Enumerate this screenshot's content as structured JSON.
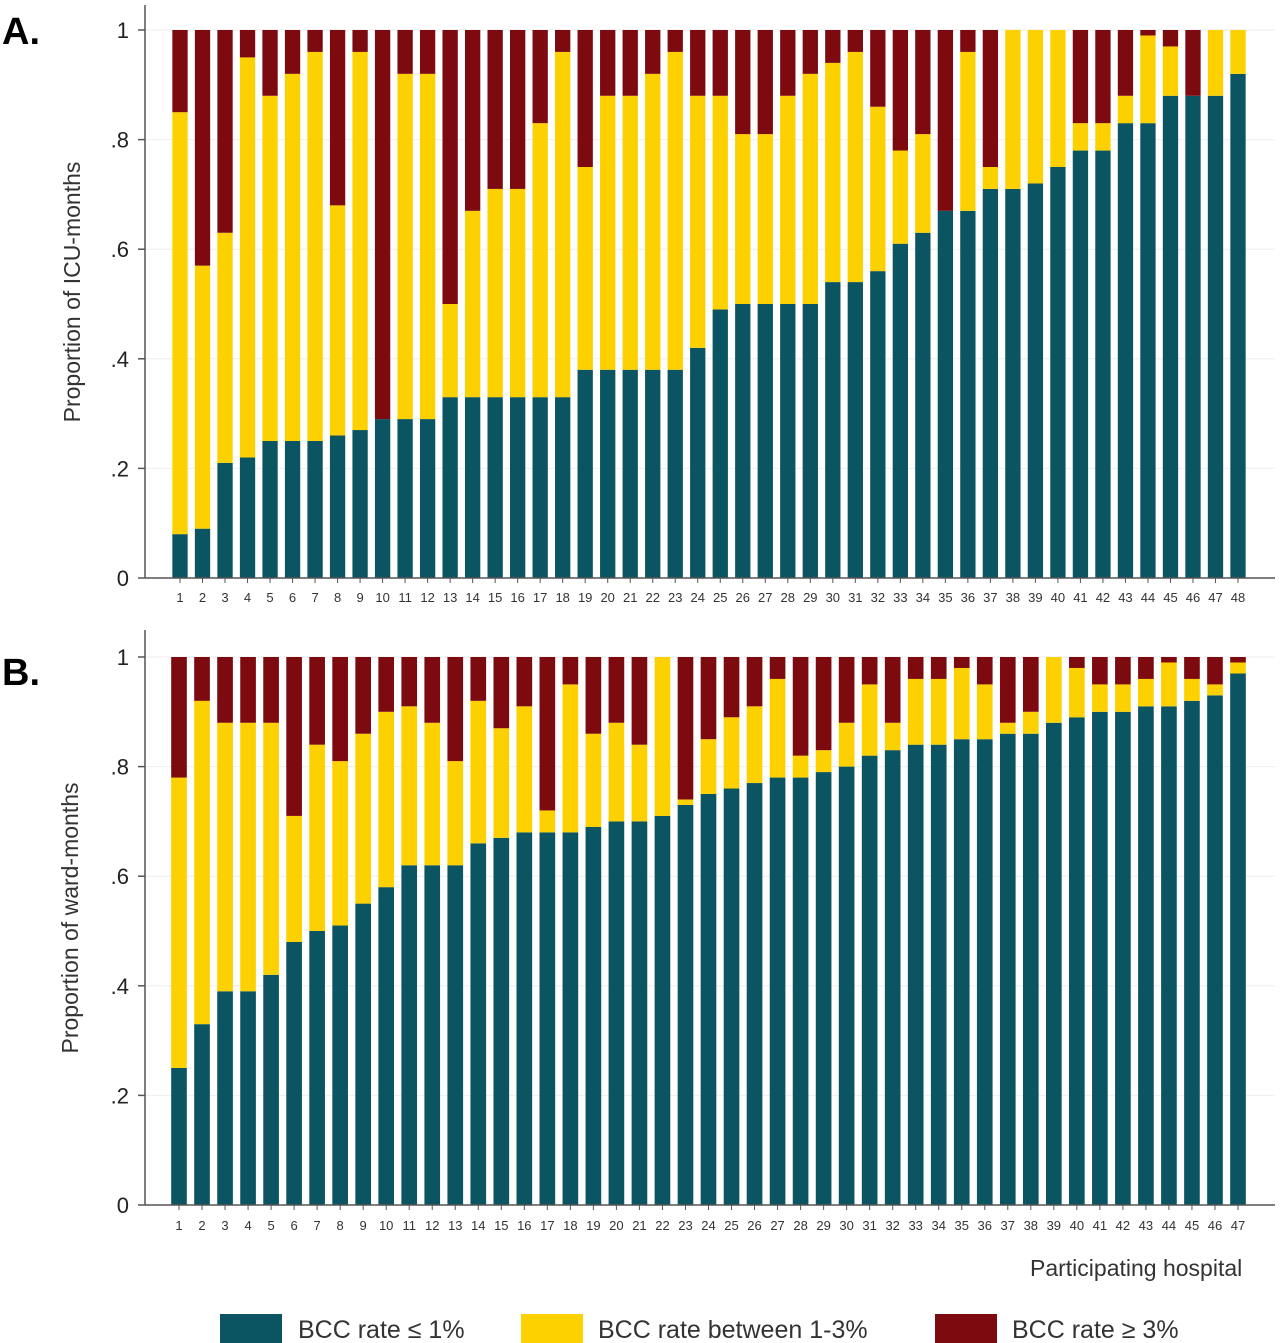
{
  "colors": {
    "low": "#0b5563",
    "mid": "#fdd000",
    "high": "#7d0a0f"
  },
  "legend": [
    "BCC rate ≤ 1%",
    "BCC rate between 1-3%",
    "BCC rate ≥ 3%"
  ],
  "xlabel": "Participating hospital",
  "chart_data": [
    {
      "type": "bar",
      "stacked": true,
      "panel_label": "A.",
      "ylabel": "Proportion of ICU-months",
      "ylim": [
        0,
        1
      ],
      "yticks": [
        "0",
        ".2",
        ".4",
        ".6",
        ".8",
        "1"
      ],
      "grid": true,
      "categories": [
        1,
        2,
        3,
        4,
        5,
        6,
        7,
        8,
        9,
        10,
        11,
        12,
        13,
        14,
        15,
        16,
        17,
        18,
        19,
        20,
        21,
        22,
        23,
        24,
        25,
        26,
        27,
        28,
        29,
        30,
        31,
        32,
        33,
        34,
        35,
        36,
        37,
        38,
        39,
        40,
        41,
        42,
        43,
        44,
        45,
        46,
        47,
        48
      ],
      "series": [
        {
          "name": "BCC rate ≤ 1%",
          "values": [
            0.08,
            0.09,
            0.21,
            0.22,
            0.25,
            0.25,
            0.25,
            0.26,
            0.27,
            0.29,
            0.29,
            0.29,
            0.33,
            0.33,
            0.33,
            0.33,
            0.33,
            0.33,
            0.38,
            0.38,
            0.38,
            0.38,
            0.38,
            0.42,
            0.49,
            0.5,
            0.5,
            0.5,
            0.5,
            0.54,
            0.54,
            0.56,
            0.61,
            0.63,
            0.67,
            0.67,
            0.71,
            0.71,
            0.72,
            0.75,
            0.78,
            0.78,
            0.83,
            0.83,
            0.88,
            0.88,
            0.88,
            0.92
          ]
        },
        {
          "name": "BCC rate between 1-3%",
          "values": [
            0.77,
            0.48,
            0.42,
            0.73,
            0.63,
            0.67,
            0.71,
            0.42,
            0.69,
            0,
            0.63,
            0.63,
            0.17,
            0.34,
            0.38,
            0.38,
            0.5,
            0.63,
            0.37,
            0.5,
            0.5,
            0.54,
            0.58,
            0.46,
            0.39,
            0.31,
            0.31,
            0.38,
            0.42,
            0.4,
            0.42,
            0.3,
            0.17,
            0.18,
            0,
            0.29,
            0.04,
            0.29,
            0.28,
            0.25,
            0.05,
            0.05,
            0.05,
            0.16,
            0.09,
            0,
            0.12,
            0.08
          ]
        },
        {
          "name": "BCC rate ≥ 3%",
          "values": [
            0.15,
            0.43,
            0.37,
            0.05,
            0.12,
            0.08,
            0.04,
            0.32,
            0.04,
            0.71,
            0.08,
            0.08,
            0.5,
            0.33,
            0.29,
            0.29,
            0.17,
            0.04,
            0.25,
            0.12,
            0.12,
            0.08,
            0.04,
            0.12,
            0.12,
            0.19,
            0.19,
            0.12,
            0.08,
            0.06,
            0.04,
            0.14,
            0.22,
            0.19,
            0.33,
            0.04,
            0.25,
            0,
            0,
            0,
            0.17,
            0.17,
            0.12,
            0.01,
            0.03,
            0.12,
            0,
            0
          ]
        }
      ]
    },
    {
      "type": "bar",
      "stacked": true,
      "panel_label": "B.",
      "ylabel": "Proportion of ward-months",
      "ylim": [
        0,
        1
      ],
      "yticks": [
        "0",
        ".2",
        ".4",
        ".6",
        ".8",
        "1"
      ],
      "grid": true,
      "categories": [
        1,
        2,
        3,
        4,
        5,
        6,
        7,
        8,
        9,
        10,
        11,
        12,
        13,
        14,
        15,
        16,
        17,
        18,
        19,
        20,
        21,
        22,
        23,
        24,
        25,
        26,
        27,
        28,
        29,
        30,
        31,
        32,
        33,
        34,
        35,
        36,
        37,
        38,
        39,
        40,
        41,
        42,
        43,
        44,
        45,
        46,
        47
      ],
      "series": [
        {
          "name": "BCC rate ≤ 1%",
          "values": [
            0.25,
            0.33,
            0.39,
            0.39,
            0.42,
            0.48,
            0.5,
            0.51,
            0.55,
            0.58,
            0.62,
            0.62,
            0.62,
            0.66,
            0.67,
            0.68,
            0.68,
            0.68,
            0.69,
            0.7,
            0.7,
            0.71,
            0.73,
            0.75,
            0.76,
            0.77,
            0.78,
            0.78,
            0.79,
            0.8,
            0.82,
            0.83,
            0.84,
            0.84,
            0.85,
            0.85,
            0.86,
            0.86,
            0.88,
            0.89,
            0.9,
            0.9,
            0.91,
            0.91,
            0.92,
            0.93,
            0.97
          ]
        },
        {
          "name": "BCC rate between 1-3%",
          "values": [
            0.53,
            0.59,
            0.49,
            0.49,
            0.46,
            0.23,
            0.34,
            0.3,
            0.31,
            0.32,
            0.29,
            0.26,
            0.19,
            0.26,
            0.2,
            0.23,
            0.04,
            0.27,
            0.17,
            0.18,
            0.14,
            0.29,
            0.01,
            0.1,
            0.13,
            0.14,
            0.18,
            0.04,
            0.04,
            0.08,
            0.13,
            0.05,
            0.12,
            0.12,
            0.13,
            0.1,
            0.02,
            0.04,
            0.12,
            0.09,
            0.05,
            0.05,
            0.05,
            0.08,
            0.04,
            0.02,
            0.02
          ]
        },
        {
          "name": "BCC rate ≥ 3%",
          "values": [
            0.22,
            0.08,
            0.12,
            0.12,
            0.12,
            0.29,
            0.16,
            0.19,
            0.14,
            0.1,
            0.09,
            0.12,
            0.19,
            0.08,
            0.13,
            0.09,
            0.28,
            0.05,
            0.14,
            0.12,
            0.16,
            0,
            0.26,
            0.15,
            0.11,
            0.09,
            0.04,
            0.18,
            0.17,
            0.12,
            0.05,
            0.12,
            0.04,
            0.04,
            0.02,
            0.05,
            0.12,
            0.1,
            0,
            0.02,
            0.05,
            0.05,
            0.04,
            0.01,
            0.04,
            0.05,
            0.01
          ]
        }
      ]
    }
  ]
}
